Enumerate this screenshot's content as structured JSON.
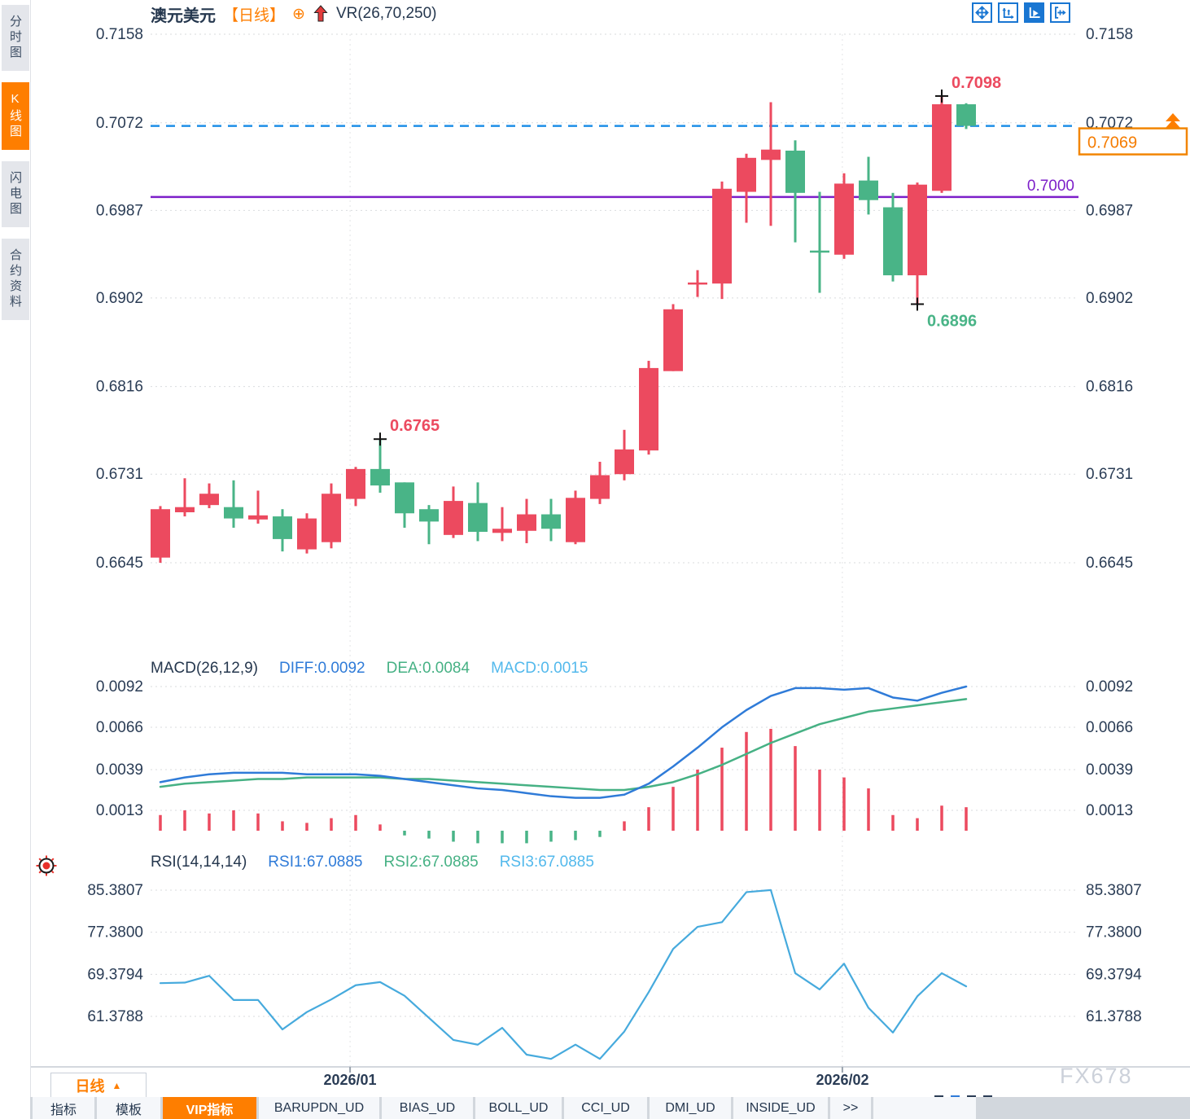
{
  "header": {
    "symbol": "澳元美元",
    "timeframe_tag": "【日线】",
    "indicator_label": "VR(26,70,250)",
    "icons": [
      "circle-plus-icon",
      "red-up-arrow-icon"
    ],
    "toolbar_icons": [
      "pan-crosshair",
      "axis-range",
      "axis-play",
      "exit-right"
    ]
  },
  "sidebar": {
    "items": [
      {
        "label": "分时图",
        "active": false
      },
      {
        "label": "K线图",
        "active": true
      },
      {
        "label": "闪电图",
        "active": false
      },
      {
        "label": "合约资料",
        "active": false
      }
    ]
  },
  "colors": {
    "accent_orange": "#fe7e00",
    "bull_red": "#ec4a5f",
    "bear_green": "#49b487",
    "line_blue": "#2f7bd8",
    "line_green": "#46b184",
    "line_cyan": "#53b9ec",
    "rsi_blue": "#46aadd",
    "purple": "#7d1fc9",
    "dashed_blue": "#1e8fe8",
    "navy": "#2a3c55",
    "grid": "#d9dbde"
  },
  "chart_data": [
    {
      "type": "candlestick",
      "title": "澳元美元 日线",
      "up_color": "#ec4a5f",
      "down_color": "#49b487",
      "y_ticks": [
        "0.7158",
        "0.7072",
        "0.6987",
        "0.6902",
        "0.6816",
        "0.6731",
        "0.6645"
      ],
      "ylim": [
        0.6575,
        0.7165
      ],
      "grid": true,
      "candles": [
        {
          "o": 0.665,
          "h": 0.67,
          "l": 0.6645,
          "c": 0.6697
        },
        {
          "o": 0.6694,
          "h": 0.6727,
          "l": 0.669,
          "c": 0.6699
        },
        {
          "o": 0.6701,
          "h": 0.6722,
          "l": 0.6698,
          "c": 0.6712
        },
        {
          "o": 0.6699,
          "h": 0.6725,
          "l": 0.6679,
          "c": 0.6688
        },
        {
          "o": 0.6687,
          "h": 0.6715,
          "l": 0.6683,
          "c": 0.6691
        },
        {
          "o": 0.669,
          "h": 0.6697,
          "l": 0.6656,
          "c": 0.6668
        },
        {
          "o": 0.6658,
          "h": 0.6693,
          "l": 0.6654,
          "c": 0.6688
        },
        {
          "o": 0.6665,
          "h": 0.6722,
          "l": 0.6659,
          "c": 0.6712
        },
        {
          "o": 0.6707,
          "h": 0.6738,
          "l": 0.67,
          "c": 0.6736
        },
        {
          "o": 0.6736,
          "h": 0.6765,
          "l": 0.6713,
          "c": 0.672
        },
        {
          "o": 0.6723,
          "h": 0.6723,
          "l": 0.6679,
          "c": 0.6693
        },
        {
          "o": 0.6697,
          "h": 0.6701,
          "l": 0.6663,
          "c": 0.6685
        },
        {
          "o": 0.6672,
          "h": 0.6719,
          "l": 0.6669,
          "c": 0.6705
        },
        {
          "o": 0.6703,
          "h": 0.6723,
          "l": 0.6666,
          "c": 0.6675
        },
        {
          "o": 0.6674,
          "h": 0.6699,
          "l": 0.6666,
          "c": 0.6678
        },
        {
          "o": 0.6676,
          "h": 0.6707,
          "l": 0.6664,
          "c": 0.6692
        },
        {
          "o": 0.6692,
          "h": 0.6707,
          "l": 0.6666,
          "c": 0.6678
        },
        {
          "o": 0.6665,
          "h": 0.6715,
          "l": 0.6663,
          "c": 0.6708
        },
        {
          "o": 0.6707,
          "h": 0.6743,
          "l": 0.6702,
          "c": 0.673
        },
        {
          "o": 0.6731,
          "h": 0.6774,
          "l": 0.6725,
          "c": 0.6755
        },
        {
          "o": 0.6754,
          "h": 0.6841,
          "l": 0.675,
          "c": 0.6834
        },
        {
          "o": 0.6831,
          "h": 0.6896,
          "l": 0.6831,
          "c": 0.6891
        },
        {
          "o": 0.6915,
          "h": 0.6929,
          "l": 0.6903,
          "c": 0.6917
        },
        {
          "o": 0.6916,
          "h": 0.7015,
          "l": 0.6901,
          "c": 0.7008
        },
        {
          "o": 0.7005,
          "h": 0.7042,
          "l": 0.6975,
          "c": 0.7038
        },
        {
          "o": 0.7036,
          "h": 0.7092,
          "l": 0.6972,
          "c": 0.7046
        },
        {
          "o": 0.7045,
          "h": 0.7055,
          "l": 0.6956,
          "c": 0.7004
        },
        {
          "o": 0.6948,
          "h": 0.7005,
          "l": 0.6907,
          "c": 0.6946
        },
        {
          "o": 0.6944,
          "h": 0.7023,
          "l": 0.694,
          "c": 0.7013
        },
        {
          "o": 0.7016,
          "h": 0.7039,
          "l": 0.6983,
          "c": 0.6997
        },
        {
          "o": 0.699,
          "h": 0.7004,
          "l": 0.6918,
          "c": 0.6924
        },
        {
          "o": 0.6924,
          "h": 0.7014,
          "l": 0.6896,
          "c": 0.7012
        },
        {
          "o": 0.7006,
          "h": 0.7098,
          "l": 0.7004,
          "c": 0.709
        },
        {
          "o": 0.709,
          "h": 0.7091,
          "l": 0.7066,
          "c": 0.7069
        }
      ],
      "annotations": [
        {
          "index": 9,
          "at": "high",
          "label": "0.6765",
          "color": "red"
        },
        {
          "index": 31,
          "at": "low",
          "label": "0.6896",
          "color": "green"
        },
        {
          "index": 32,
          "at": "high",
          "label": "0.7098",
          "color": "red"
        }
      ],
      "hlines": [
        {
          "value": 0.7,
          "label": "0.7000",
          "style": "solid",
          "color": "#7d1fc9"
        },
        {
          "value": 0.7069,
          "label": "",
          "style": "dashed",
          "color": "#1e8fe8"
        }
      ],
      "last_price": {
        "value": "0.7069",
        "color": "#f57c00"
      }
    },
    {
      "type": "macd_panel",
      "params_label": "MACD(26,12,9)",
      "legend": [
        {
          "label": "DIFF:0.0092",
          "color": "#2f7bd8"
        },
        {
          "label": "DEA:0.0084",
          "color": "#46b184"
        },
        {
          "label": "MACD:0.0015",
          "color": "#53b9ec"
        }
      ],
      "y_ticks": [
        "0.0092",
        "0.0066",
        "0.0039",
        "0.0013"
      ],
      "diff": [
        0.0031,
        0.0034,
        0.0036,
        0.0037,
        0.0037,
        0.0037,
        0.0036,
        0.0036,
        0.0036,
        0.0035,
        0.0033,
        0.0031,
        0.0029,
        0.0027,
        0.0026,
        0.0024,
        0.0022,
        0.0021,
        0.0021,
        0.0023,
        0.003,
        0.0041,
        0.0053,
        0.0066,
        0.0077,
        0.0086,
        0.0091,
        0.0091,
        0.009,
        0.0091,
        0.0085,
        0.0083,
        0.0088,
        0.0092
      ],
      "dea": [
        0.0028,
        0.003,
        0.0031,
        0.0032,
        0.0033,
        0.0033,
        0.0034,
        0.0034,
        0.0034,
        0.0034,
        0.0033,
        0.0033,
        0.0032,
        0.0031,
        0.003,
        0.0029,
        0.0028,
        0.0027,
        0.0026,
        0.0026,
        0.0028,
        0.0031,
        0.0036,
        0.0042,
        0.0049,
        0.0056,
        0.0062,
        0.0068,
        0.0072,
        0.0076,
        0.0078,
        0.008,
        0.0082,
        0.0084
      ],
      "hist": [
        0.001,
        0.0013,
        0.0011,
        0.0013,
        0.0011,
        0.0006,
        0.0005,
        0.0008,
        0.001,
        0.0004,
        -0.0003,
        -0.0005,
        -0.0007,
        -0.0008,
        -0.0008,
        -0.0008,
        -0.0007,
        -0.0006,
        -0.0004,
        0.0006,
        0.0015,
        0.0028,
        0.0039,
        0.0053,
        0.0063,
        0.0065,
        0.0054,
        0.0039,
        0.0034,
        0.0027,
        0.001,
        0.0008,
        0.0016,
        0.0015
      ]
    },
    {
      "type": "rsi_panel",
      "params_label": "RSI(14,14,14)",
      "legend": [
        {
          "label": "RSI1:67.0885",
          "color": "#2f7bd8"
        },
        {
          "label": "RSI2:67.0885",
          "color": "#46b184"
        },
        {
          "label": "RSI3:67.0885",
          "color": "#53b9ec"
        }
      ],
      "y_ticks": [
        "85.3807",
        "77.3800",
        "69.3794",
        "61.3788"
      ],
      "values": [
        67.7,
        67.8,
        69.1,
        64.5,
        64.5,
        58.9,
        62.2,
        64.6,
        67.3,
        67.9,
        65.3,
        61.1,
        56.9,
        56.0,
        59.2,
        54.1,
        53.3,
        56.0,
        53.3,
        58.5,
        66.0,
        74.2,
        78.4,
        79.3,
        85.0,
        85.4,
        69.6,
        66.5,
        71.4,
        63.0,
        58.3,
        65.2,
        69.6,
        67.09
      ]
    }
  ],
  "bottom": {
    "timeframe_button": "日线",
    "x_axis_labels": [
      {
        "label": "2026/01",
        "index": 7.77
      },
      {
        "label": "2026/02",
        "index": 27.93
      }
    ],
    "watermark": "FX678"
  },
  "tabs": {
    "items": [
      {
        "label": "指标",
        "active": false
      },
      {
        "label": "模板",
        "active": false
      },
      {
        "label": "VIP指标",
        "active": true
      },
      {
        "label": "BARUPDN_UD",
        "active": false
      },
      {
        "label": "BIAS_UD",
        "active": false
      },
      {
        "label": "BOLL_UD",
        "active": false
      },
      {
        "label": "CCI_UD",
        "active": false
      },
      {
        "label": "DMI_UD",
        "active": false
      },
      {
        "label": "INSIDE_UD",
        "active": false
      },
      {
        "label": ">>",
        "active": false
      }
    ]
  }
}
